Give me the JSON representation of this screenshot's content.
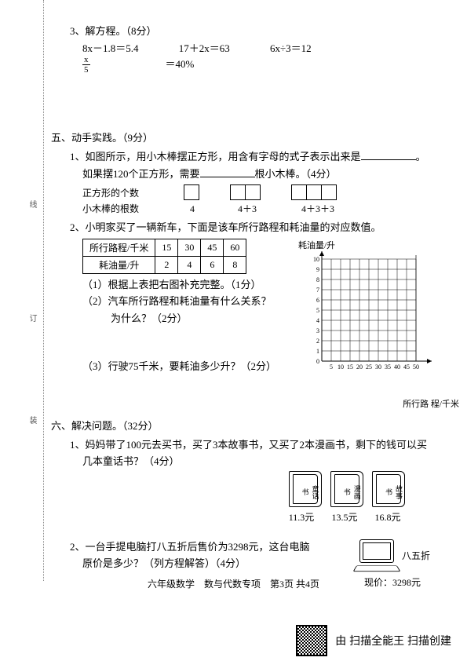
{
  "q3": {
    "title": "3、解方程。（8分）",
    "equations": [
      "8x－1.8＝5.4",
      "17＋2x＝63",
      "6x÷3＝12"
    ],
    "eq4_num": "x",
    "eq4_den": "5",
    "eq4_rhs": " ＝40%"
  },
  "sec5": {
    "title": "五、动手实践。（9分）",
    "q1_line1": "1、如图所示，用小木棒摆正方形，用含有字母的式子表示出来是",
    "q1_line1_end": "。",
    "q1_line2a": "如果摆120个正方形，需要",
    "q1_line2b": "根小木棒。（4分）",
    "row_labels": {
      "a": "正方形的个数",
      "b": "小木棒的根数"
    },
    "sq_counts": [
      "4",
      "4＋3",
      "4＋3＋3"
    ],
    "q2_intro": "2、小明家买了一辆新车，下面是该车所行路程和耗油量的对应数值。",
    "table": {
      "r1": [
        "所行路程/千米",
        "15",
        "30",
        "45",
        "60"
      ],
      "r2": [
        "耗油量/升",
        "2",
        "4",
        "6",
        "8"
      ]
    },
    "q2_sub1": "（1）根据上表把右图补充完整。（1分）",
    "q2_sub2": "（2）汽车所行路程和耗油量有什么关系？",
    "q2_sub2b": "为什么？（2分）",
    "q2_sub3": "（3）行驶75千米，要耗油多少升？（2分）",
    "chart": {
      "ylabel": "耗油量/升",
      "xlabel": "所行路\n程/千米",
      "ytick": [
        "10",
        "9",
        "8",
        "7",
        "6",
        "5",
        "4",
        "3",
        "2",
        "1",
        "0"
      ],
      "xtick": [
        "5",
        "10",
        "15",
        "20",
        "25",
        "30",
        "35",
        "40",
        "45",
        "50"
      ]
    }
  },
  "sec6": {
    "title": "六、解决问题。（32分）",
    "q1a": "1、妈妈带了100元去买书，买了3本故事书，又买了2本漫画书，剩下的钱可以买",
    "q1b": "几本童话书？（4分）",
    "books": [
      "童话书",
      "漫画书",
      "故事书"
    ],
    "prices": [
      "11.3元",
      "13.5元",
      "16.8元"
    ],
    "q2a": "2、一台手提电脑打八五折后售价为3298元，这台电脑",
    "q2b": "原价是多少？（列方程解答）（4分）",
    "discount": "八五折",
    "price_label": "现价：3298元"
  },
  "footer": "六年级数学　数与代数专项　第3页 共4页",
  "qr_text": "由 扫描全能王 扫描创建",
  "side": {
    "a": "线",
    "b": "订",
    "c": "装"
  }
}
